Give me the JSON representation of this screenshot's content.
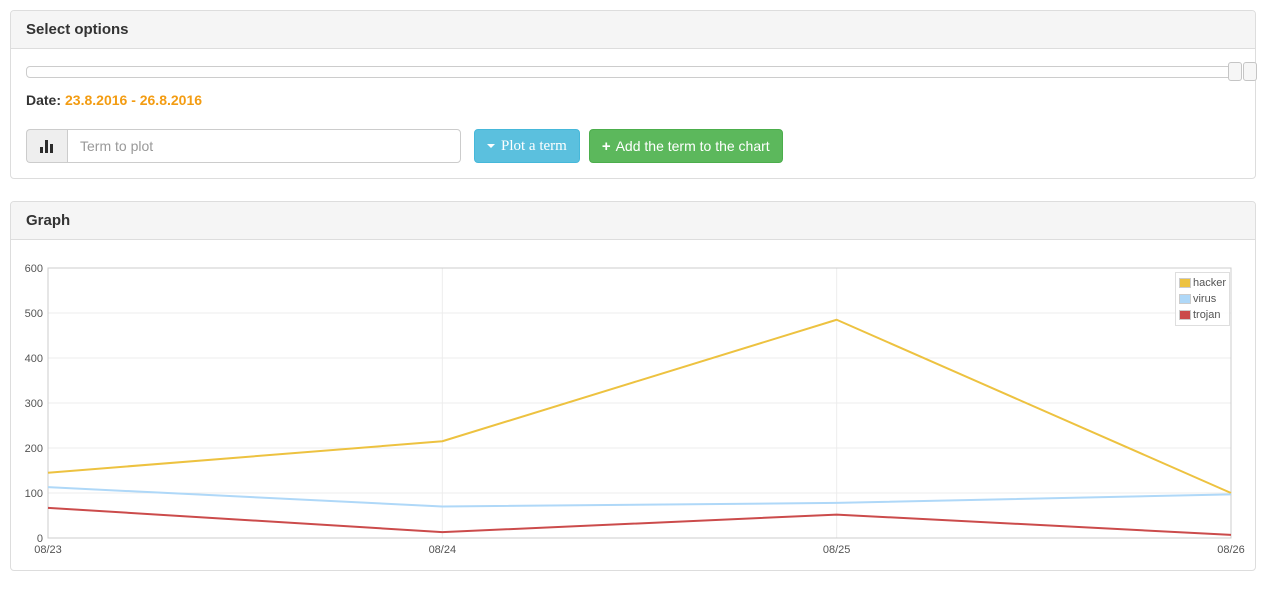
{
  "select_options_panel": {
    "title": "Select options",
    "slider": {
      "handles": 2,
      "position": "right"
    },
    "date_label": "Date:",
    "date_range": "23.8.2016 - 26.8.2016",
    "date_range_color": "#f39c12",
    "term_input": {
      "value": "",
      "placeholder": "Term to plot"
    },
    "addon_icon": "bar-chart",
    "plot_term_button": {
      "label": "Plot a term",
      "icon": "caret-down",
      "color": "#5bc0de"
    },
    "add_term_button": {
      "label": "Add the term to the chart",
      "icon_glyph": "+",
      "color": "#5cb85c"
    }
  },
  "graph_panel": {
    "title": "Graph"
  },
  "chart_data": {
    "type": "line",
    "categories": [
      "08/23",
      "08/24",
      "08/25",
      "08/26"
    ],
    "series": [
      {
        "name": "hacker",
        "color": "#EDC240",
        "values": [
          145,
          215,
          485,
          100
        ]
      },
      {
        "name": "virus",
        "color": "#AFD8F8",
        "values": [
          113,
          70,
          78,
          97
        ]
      },
      {
        "name": "trojan",
        "color": "#CB4B4B",
        "values": [
          67,
          13,
          52,
          7
        ]
      }
    ],
    "title": "",
    "xlabel": "",
    "ylabel": "",
    "ylim": [
      0,
      600
    ],
    "ytick_step": 100,
    "yticks": [
      0,
      100,
      200,
      300,
      400,
      500,
      600
    ],
    "grid": true,
    "grid_color": "#ededed",
    "border_color": "#cccccc",
    "legend_position": "top-right"
  }
}
